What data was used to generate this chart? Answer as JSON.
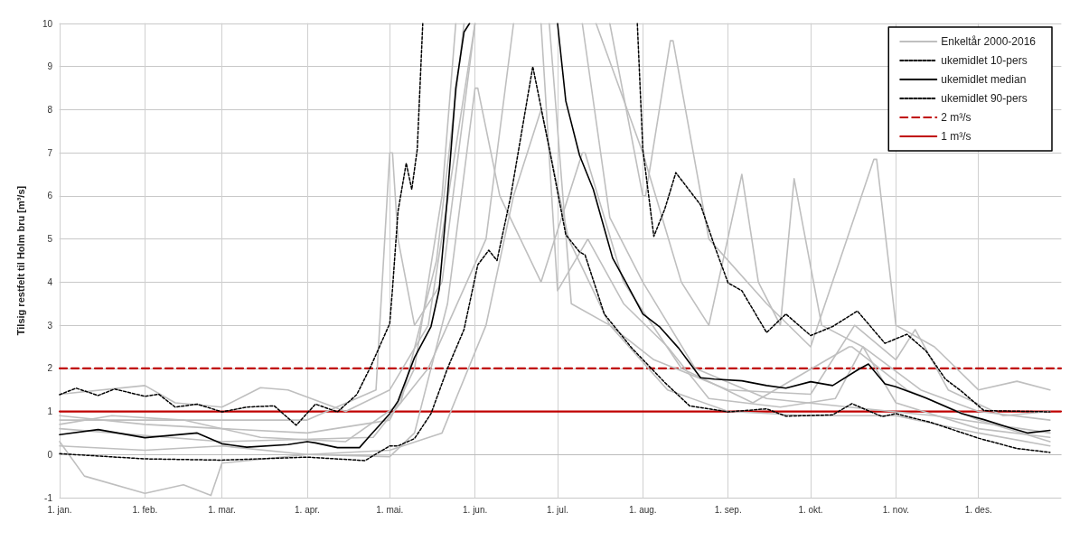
{
  "chart_data": {
    "type": "line",
    "ylabel": "Tilsig restfelt til Holm bru [m³/s]",
    "xlim": [
      "--01-01",
      "--12-31"
    ],
    "xticks": [
      {
        "value": "--01-01",
        "label": "1. jan."
      },
      {
        "value": "--02-01",
        "label": "1. feb."
      },
      {
        "value": "--03-01",
        "label": "1. mar."
      },
      {
        "value": "--04-01",
        "label": "1. apr."
      },
      {
        "value": "--05-01",
        "label": "1. mai."
      },
      {
        "value": "--06-01",
        "label": "1. jun."
      },
      {
        "value": "--07-01",
        "label": "1. jul."
      },
      {
        "value": "--08-01",
        "label": "1. aug."
      },
      {
        "value": "--09-01",
        "label": "1. sep."
      },
      {
        "value": "--10-01",
        "label": "1. okt."
      },
      {
        "value": "--11-01",
        "label": "1. nov."
      },
      {
        "value": "--12-01",
        "label": "1. des."
      }
    ],
    "ylim": [
      -1,
      10
    ],
    "yticks": [
      -1,
      0,
      1,
      2,
      3,
      4,
      5,
      6,
      7,
      8,
      9,
      10
    ],
    "grid": true,
    "legend": "top right",
    "marker": "none",
    "series": [
      {
        "name": "Enkeltår 2000-2016",
        "color": "#bfbfbf",
        "line_style": "solid",
        "x": [
          "--01-01",
          "--04-01",
          "--04-26",
          "--05-01",
          "--05-02",
          "--05-04",
          "--05-10",
          "--05-20",
          "--06-01",
          "--06-20",
          "--07-10",
          "--07-20",
          "--08-01",
          "--08-20",
          "--09-15",
          "--10-15",
          "--11-15",
          "--12-27"
        ],
        "values": [
          0.8,
          0.8,
          1.5,
          7.0,
          7.0,
          5.0,
          3.0,
          4.0,
          10,
          null,
          10,
          5.5,
          4.0,
          2.0,
          1.3,
          1.1,
          0.9,
          0.5
        ]
      },
      {
        "color": "#bfbfbf",
        "line_style": "solid",
        "x": [
          "--01-01",
          "--02-01",
          "--02-12",
          "--03-01",
          "--03-15",
          "--03-25",
          "--04-15",
          "--05-01",
          "--05-15",
          "--06-01",
          "--06-25",
          "--07-20",
          "--08-01",
          "--08-02",
          "--08-11",
          "--08-12",
          "--08-25",
          "--09-15",
          "--10-01",
          "--10-24",
          "--10-25",
          "--11-01",
          "--11-15",
          "--12-01",
          "--12-15",
          "--12-27"
        ],
        "values": [
          1.4,
          1.6,
          1.2,
          1.1,
          1.55,
          1.5,
          1.0,
          1.5,
          3.0,
          10,
          null,
          10,
          6.0,
          6.0,
          9.6,
          9.6,
          5.0,
          3.5,
          2.5,
          6.85,
          6.85,
          3.0,
          2.5,
          1.5,
          1.7,
          1.5
        ]
      },
      {
        "color": "#bfbfbf",
        "line_style": "solid",
        "x": [
          "--01-01",
          "--03-01",
          "--04-25",
          "--05-15",
          "--06-05",
          "--06-15",
          "--07-01",
          "--07-15",
          "--08-01",
          "--08-15",
          "--08-25",
          "--09-06",
          "--09-12",
          "--09-20",
          "--09-25",
          "--10-05",
          "--10-20",
          "--11-10",
          "--12-01",
          "--12-27"
        ],
        "values": [
          0.6,
          0.3,
          0.4,
          2.0,
          5.0,
          10,
          null,
          10,
          7.0,
          4.0,
          3.0,
          6.5,
          4.0,
          3.0,
          6.4,
          3.0,
          2.5,
          1.5,
          1.0,
          0.8
        ]
      },
      {
        "color": "#bfbfbf",
        "line_style": "solid",
        "x": [
          "--01-01",
          "--01-10",
          "--02-01",
          "--02-15",
          "--02-25",
          "--03-01",
          "--04-01",
          "--05-01",
          "--05-20",
          "--06-05",
          "--06-15",
          "--06-25",
          "--07-05",
          "--07-20",
          "--08-10",
          "--09-01",
          "--10-01",
          "--11-01",
          "--12-01",
          "--12-27"
        ],
        "values": [
          0.3,
          -0.5,
          -0.9,
          -0.7,
          -0.95,
          -0.2,
          0.0,
          0.1,
          0.5,
          3.0,
          6.0,
          8.0,
          5.0,
          3.0,
          1.5,
          1.0,
          0.9,
          0.9,
          0.5,
          0.2
        ]
      },
      {
        "color": "#bfbfbf",
        "line_style": "solid",
        "x": [
          "--01-01",
          "--02-01",
          "--03-01",
          "--04-01",
          "--05-01",
          "--05-10",
          "--05-20",
          "--05-25",
          "--06-10",
          "--06-28",
          "--07-06",
          "--07-20",
          "--08-05",
          "--09-01",
          "--10-01",
          "--10-17",
          "--11-01",
          "--11-08",
          "--11-20",
          "--12-10",
          "--12-27"
        ],
        "values": [
          0.9,
          0.7,
          0.6,
          0.5,
          0.8,
          2.0,
          6.0,
          10,
          null,
          10,
          3.5,
          3.0,
          2.2,
          1.5,
          1.4,
          3.0,
          2.2,
          2.9,
          1.5,
          0.9,
          1.0
        ]
      },
      {
        "color": "#bfbfbf",
        "line_style": "solid",
        "x": [
          "--01-01",
          "--02-01",
          "--03-01",
          "--04-01",
          "--05-01",
          "--05-10",
          "--05-22",
          "--06-01",
          "--06-02",
          "--06-10",
          "--06-25",
          "--07-10",
          "--07-11",
          "--07-25",
          "--08-15",
          "--09-10",
          "--10-15",
          "--10-16",
          "--11-05",
          "--12-01",
          "--12-27"
        ],
        "values": [
          0.2,
          0.1,
          0.2,
          0.0,
          -0.05,
          0.5,
          3.5,
          8.5,
          8.5,
          6.0,
          4.0,
          7.0,
          7.0,
          4.0,
          2.0,
          1.2,
          2.5,
          2.5,
          1.5,
          0.8,
          0.3
        ]
      },
      {
        "color": "#bfbfbf",
        "line_style": "solid",
        "x": [
          "--01-01",
          "--01-20",
          "--02-15",
          "--03-15",
          "--04-15",
          "--05-05",
          "--05-18",
          "--05-28",
          "--06-12",
          "--06-25",
          "--07-01",
          "--07-12",
          "--07-25",
          "--08-10",
          "--08-25",
          "--09-20",
          "--10-10",
          "--10-20",
          "--11-01",
          "--12-01",
          "--12-27"
        ],
        "values": [
          0.7,
          0.9,
          0.8,
          0.4,
          0.3,
          1.2,
          4.5,
          10,
          null,
          10,
          3.8,
          5.0,
          3.5,
          2.5,
          1.3,
          1.1,
          1.3,
          2.5,
          1.2,
          0.6,
          0.4
        ]
      },
      {
        "name": "ukemidlet 10-pers",
        "color": "#000000",
        "line_style": "dashed",
        "x": [
          "--01-01",
          "--02-01",
          "--03-01",
          "--04-01",
          "--04-22",
          "--05-01",
          "--05-04",
          "--05-10",
          "--05-16",
          "--05-22",
          "--05-28",
          "--06-02",
          "--06-06",
          "--06-09",
          "--06-14",
          "--06-22",
          "--06-28",
          "--07-04",
          "--07-09",
          "--07-11",
          "--07-18",
          "--07-28",
          "--08-09",
          "--08-18",
          "--09-01",
          "--09-15",
          "--09-22",
          "--10-09",
          "--10-16",
          "--10-27",
          "--11-01",
          "--11-14",
          "--12-01",
          "--12-15",
          "--12-27"
        ],
        "values": [
          0.02,
          -0.1,
          -0.13,
          -0.06,
          -0.14,
          0.2,
          0.2,
          0.37,
          0.95,
          2.0,
          2.9,
          4.4,
          4.74,
          4.5,
          6.0,
          9.0,
          7.1,
          5.1,
          4.7,
          4.63,
          3.26,
          2.47,
          1.67,
          1.13,
          0.99,
          1.06,
          0.89,
          0.92,
          1.18,
          0.88,
          0.95,
          0.74,
          0.38,
          0.14,
          0.05
        ]
      },
      {
        "name": "ukemidlet median",
        "color": "#000000",
        "line_style": "solid",
        "x": [
          "--01-01",
          "--01-15",
          "--02-01",
          "--02-20",
          "--03-01",
          "--03-10",
          "--03-25",
          "--04-01",
          "--04-04",
          "--04-12",
          "--04-20",
          "--04-24",
          "--04-27",
          "--05-01",
          "--05-04",
          "--05-10",
          "--05-16",
          "--05-19",
          "--05-22",
          "--05-25",
          "--05-28",
          "--05-30",
          "--06-15",
          "--07-01",
          "--07-04",
          "--07-09",
          "--07-14",
          "--07-21",
          "--07-26",
          "--08-01",
          "--08-07",
          "--08-14",
          "--08-22",
          "--08-27",
          "--09-06",
          "--09-15",
          "--09-22",
          "--10-01",
          "--10-09",
          "--10-18",
          "--10-22",
          "--10-28",
          "--11-01",
          "--11-12",
          "--11-25",
          "--12-03",
          "--12-12",
          "--12-19",
          "--12-27"
        ],
        "values": [
          0.46,
          0.58,
          0.39,
          0.5,
          0.25,
          0.17,
          0.23,
          0.3,
          0.27,
          0.16,
          0.16,
          0.45,
          0.66,
          0.95,
          1.24,
          2.25,
          2.97,
          3.84,
          6.0,
          8.5,
          9.8,
          10,
          null,
          10,
          8.2,
          6.94,
          6.15,
          4.56,
          3.98,
          3.26,
          2.97,
          2.47,
          1.78,
          1.75,
          1.71,
          1.6,
          1.54,
          1.69,
          1.6,
          1.96,
          2.1,
          1.64,
          1.57,
          1.31,
          0.95,
          0.81,
          0.63,
          0.5,
          0.56
        ]
      },
      {
        "name": "ukemidlet 90-pers",
        "color": "#000000",
        "line_style": "dashed",
        "x": [
          "--01-01",
          "--01-07",
          "--01-15",
          "--01-21",
          "--02-01",
          "--02-06",
          "--02-12",
          "--02-20",
          "--03-01",
          "--03-10",
          "--03-20",
          "--03-28",
          "--04-04",
          "--04-12",
          "--04-19",
          "--04-24",
          "--05-01",
          "--05-02",
          "--05-04",
          "--05-07",
          "--05-09",
          "--05-11",
          "--05-13",
          "--06-20",
          "--07-30",
          "--08-01",
          "--08-05",
          "--08-09",
          "--08-13",
          "--08-22",
          "--08-27",
          "--09-01",
          "--09-06",
          "--09-15",
          "--09-22",
          "--10-01",
          "--10-09",
          "--10-18",
          "--10-28",
          "--11-05",
          "--11-12",
          "--11-19",
          "--11-25",
          "--12-03",
          "--12-27"
        ],
        "values": [
          1.39,
          1.54,
          1.37,
          1.52,
          1.35,
          1.4,
          1.1,
          1.17,
          0.99,
          1.1,
          1.13,
          0.68,
          1.17,
          0.99,
          1.39,
          2.03,
          3.04,
          3.84,
          5.64,
          6.76,
          6.15,
          7.08,
          10,
          null,
          10,
          7.08,
          5.06,
          5.7,
          6.54,
          5.79,
          4.85,
          3.98,
          3.8,
          2.83,
          3.26,
          2.76,
          2.97,
          3.33,
          2.58,
          2.79,
          2.4,
          1.75,
          1.46,
          1.02,
          0.99
        ]
      }
    ],
    "ref_lines": [
      {
        "axis": "y",
        "value": 2,
        "label": "2 m³/s",
        "color": "#c00000",
        "line_style": "dashed"
      },
      {
        "axis": "y",
        "value": 1,
        "label": "1 m³/s",
        "color": "#c00000",
        "line_style": "solid"
      }
    ]
  }
}
